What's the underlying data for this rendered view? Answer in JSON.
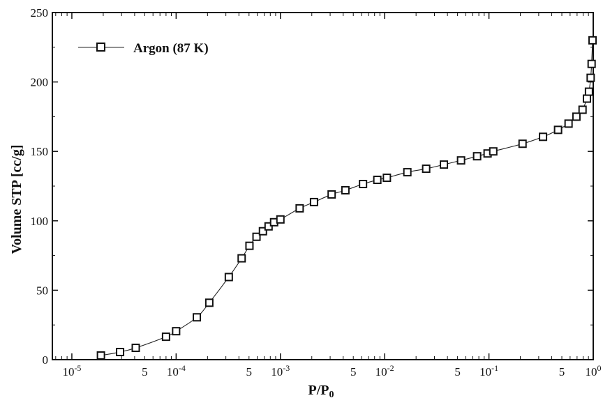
{
  "chart_data": {
    "type": "line",
    "title": "",
    "xlabel": "P/P",
    "xlabel_sub": "0",
    "ylabel": "Volume STP [cc/g]",
    "x_scale": "log",
    "xlim": [
      6.5e-06,
      1.0
    ],
    "ylim": [
      0,
      250
    ],
    "grid": false,
    "legend": "top-left",
    "marker": "open-square",
    "y_ticks": [
      "0",
      "50",
      "100",
      "150",
      "200",
      "250"
    ],
    "y_tick_values": [
      0,
      50,
      100,
      150,
      200,
      250
    ],
    "x_major_ticks": [
      {
        "value": 1e-05,
        "base": "10",
        "exp": "-5"
      },
      {
        "value": 0.0001,
        "base": "10",
        "exp": "-4"
      },
      {
        "value": 0.001,
        "base": "10",
        "exp": "-3"
      },
      {
        "value": 0.01,
        "base": "10",
        "exp": "-2"
      },
      {
        "value": 0.1,
        "base": "10",
        "exp": "-1"
      },
      {
        "value": 1,
        "base": "10",
        "exp": "0"
      }
    ],
    "x_five_ticks": [
      {
        "value": 5e-05,
        "label": "5"
      },
      {
        "value": 0.0005,
        "label": "5"
      },
      {
        "value": 0.005,
        "label": "5"
      },
      {
        "value": 0.05,
        "label": "5"
      },
      {
        "value": 0.5,
        "label": "5"
      }
    ],
    "series": [
      {
        "name": "Argon (87 K)",
        "color": "#222222",
        "points": [
          [
            1.9e-05,
            3
          ],
          [
            2.9e-05,
            5.5
          ],
          [
            4.1e-05,
            8.5
          ],
          [
            8e-05,
            16.5
          ],
          [
            0.0001,
            20.5
          ],
          [
            0.000158,
            30.5
          ],
          [
            0.000208,
            41
          ],
          [
            0.00032,
            59.5
          ],
          [
            0.000425,
            73
          ],
          [
            0.000505,
            82
          ],
          [
            0.00059,
            88.5
          ],
          [
            0.00068,
            92.5
          ],
          [
            0.00077,
            96
          ],
          [
            0.00087,
            99
          ],
          [
            0.001,
            101
          ],
          [
            0.00153,
            109
          ],
          [
            0.0021,
            113.5
          ],
          [
            0.0031,
            119
          ],
          [
            0.0042,
            122
          ],
          [
            0.0062,
            126.5
          ],
          [
            0.0085,
            129.5
          ],
          [
            0.0105,
            131
          ],
          [
            0.0165,
            135
          ],
          [
            0.025,
            137.5
          ],
          [
            0.037,
            140.5
          ],
          [
            0.054,
            143.5
          ],
          [
            0.077,
            146.5
          ],
          [
            0.097,
            148.5
          ],
          [
            0.11,
            150
          ],
          [
            0.21,
            155.5
          ],
          [
            0.33,
            160.5
          ],
          [
            0.46,
            165.5
          ],
          [
            0.58,
            170
          ],
          [
            0.69,
            175
          ],
          [
            0.79,
            180
          ],
          [
            0.87,
            188
          ],
          [
            0.91,
            193
          ],
          [
            0.945,
            203
          ],
          [
            0.965,
            213
          ],
          [
            0.985,
            230
          ]
        ]
      }
    ]
  }
}
